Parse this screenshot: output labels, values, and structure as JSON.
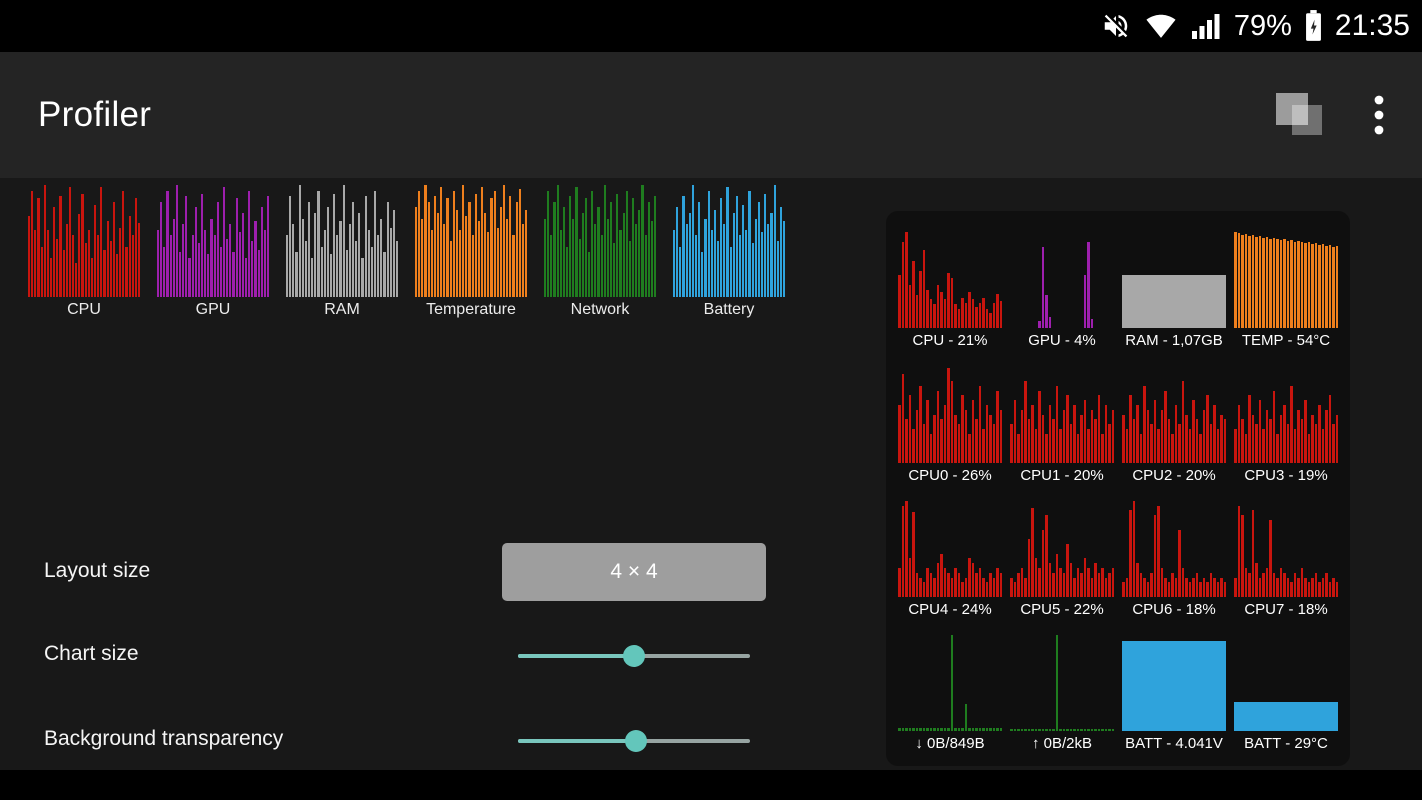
{
  "status_bar": {
    "battery_percent": "79%",
    "time": "21:35",
    "icons": [
      "volume-muted",
      "wifi",
      "cell-signal",
      "battery-charging"
    ]
  },
  "app_bar": {
    "title": "Profiler",
    "icons": [
      "overlay-windows",
      "more-vert"
    ]
  },
  "colors": {
    "accent_teal": "#63c6bb",
    "button_gray": "#9e9e9e",
    "cpu_red": "#c9150e",
    "gpu_purple": "#9e1fae",
    "ram_gray": "#a8a8a8",
    "temp_orange": "#ee7f1d",
    "network_green": "#1f7d1f",
    "battery_blue": "#2fa3dc"
  },
  "chart_types": [
    {
      "label": "CPU",
      "color": "#c9150e",
      "bars": [
        72,
        95,
        60,
        88,
        45,
        100,
        60,
        35,
        80,
        52,
        90,
        42,
        65,
        98,
        55,
        30,
        74,
        92,
        48,
        60,
        35,
        82,
        55,
        98,
        42,
        68,
        50,
        85,
        38,
        62,
        95,
        45,
        72,
        55,
        88,
        66
      ]
    },
    {
      "label": "GPU",
      "color": "#9e1fae",
      "bars": [
        60,
        85,
        45,
        95,
        55,
        70,
        100,
        40,
        65,
        90,
        35,
        55,
        80,
        48,
        92,
        60,
        38,
        70,
        55,
        85,
        45,
        98,
        52,
        65,
        40,
        88,
        58,
        75,
        35,
        95,
        50,
        68,
        42,
        80,
        60,
        90
      ]
    },
    {
      "label": "RAM",
      "color": "#a8a8a8",
      "bars": [
        55,
        90,
        65,
        40,
        100,
        70,
        50,
        85,
        35,
        75,
        95,
        45,
        60,
        80,
        38,
        92,
        55,
        68,
        100,
        42,
        65,
        85,
        50,
        75,
        35,
        90,
        60,
        45,
        95,
        55,
        70,
        40,
        85,
        62,
        78,
        50
      ]
    },
    {
      "label": "Temperature",
      "color": "#ee7f1d",
      "bars": [
        80,
        95,
        70,
        100,
        85,
        60,
        90,
        75,
        98,
        65,
        88,
        50,
        95,
        78,
        60,
        100,
        72,
        85,
        55,
        92,
        68,
        98,
        75,
        58,
        88,
        95,
        62,
        80,
        100,
        70,
        90,
        55,
        85,
        96,
        65,
        78
      ]
    },
    {
      "label": "Network",
      "color": "#1f7d1f",
      "bars": [
        70,
        95,
        55,
        85,
        100,
        60,
        80,
        45,
        90,
        70,
        98,
        52,
        75,
        88,
        40,
        95,
        65,
        80,
        55,
        100,
        70,
        85,
        48,
        92,
        60,
        75,
        95,
        50,
        88,
        65,
        78,
        100,
        55,
        85,
        68,
        90
      ]
    },
    {
      "label": "Battery",
      "color": "#2fa3dc",
      "bars": [
        60,
        80,
        45,
        90,
        65,
        75,
        100,
        55,
        85,
        40,
        70,
        95,
        60,
        78,
        50,
        88,
        65,
        98,
        45,
        75,
        90,
        55,
        82,
        60,
        95,
        48,
        70,
        85,
        58,
        92,
        65,
        75,
        100,
        50,
        80,
        68
      ]
    }
  ],
  "settings": {
    "layout_size_label": "Layout size",
    "layout_size_value": "4 × 4",
    "chart_size_label": "Chart size",
    "chart_size_percent": 50,
    "background_transparency_label": "Background transparency",
    "background_transparency_percent": 51
  },
  "preview": {
    "cells": [
      {
        "label": "CPU - 21%",
        "type": "bars",
        "color": "#c9150e",
        "bars": [
          55,
          90,
          100,
          45,
          70,
          35,
          60,
          82,
          40,
          30,
          25,
          45,
          38,
          30,
          58,
          52,
          25,
          20,
          32,
          26,
          38,
          30,
          22,
          26,
          32,
          20,
          16,
          26,
          36,
          28
        ]
      },
      {
        "label": "GPU - 4%",
        "type": "bars",
        "color": "#9e1fae",
        "bars": [
          0,
          0,
          0,
          0,
          0,
          0,
          0,
          0,
          8,
          85,
          35,
          12,
          0,
          0,
          0,
          0,
          0,
          0,
          0,
          0,
          0,
          55,
          90,
          10,
          0,
          0,
          0,
          0,
          0,
          0
        ]
      },
      {
        "label": "RAM - 1,07GB",
        "type": "fill",
        "color": "#a8a8a8",
        "level": 55
      },
      {
        "label": "TEMP - 54°C",
        "type": "bars",
        "color": "#ee7f1d",
        "bars": [
          100,
          99,
          97,
          98,
          96,
          97,
          95,
          96,
          94,
          95,
          93,
          94,
          93,
          92,
          93,
          91,
          92,
          90,
          91,
          90,
          89,
          90,
          88,
          89,
          87,
          88,
          86,
          87,
          85,
          86
        ]
      },
      {
        "label": "CPU0 - 26%",
        "type": "bars",
        "color": "#c9150e",
        "bars": [
          60,
          92,
          45,
          70,
          35,
          55,
          80,
          40,
          65,
          30,
          50,
          75,
          45,
          60,
          98,
          85,
          50,
          40,
          70,
          55,
          30,
          65,
          45,
          80,
          35,
          60,
          50,
          40,
          75,
          55
        ]
      },
      {
        "label": "CPU1 - 20%",
        "type": "bars",
        "color": "#c9150e",
        "bars": [
          40,
          65,
          30,
          55,
          85,
          45,
          60,
          35,
          75,
          50,
          30,
          60,
          45,
          80,
          35,
          55,
          70,
          40,
          60,
          30,
          50,
          65,
          35,
          55,
          45,
          70,
          30,
          60,
          40,
          55
        ]
      },
      {
        "label": "CPU2 - 20%",
        "type": "bars",
        "color": "#c9150e",
        "bars": [
          50,
          35,
          70,
          45,
          60,
          30,
          80,
          55,
          40,
          65,
          35,
          55,
          75,
          45,
          30,
          60,
          40,
          85,
          50,
          35,
          65,
          45,
          30,
          55,
          70,
          40,
          60,
          35,
          50,
          45
        ]
      },
      {
        "label": "CPU3 - 19%",
        "type": "bars",
        "color": "#c9150e",
        "bars": [
          35,
          60,
          45,
          30,
          70,
          50,
          40,
          65,
          35,
          55,
          45,
          75,
          30,
          50,
          60,
          40,
          80,
          35,
          55,
          45,
          65,
          30,
          50,
          40,
          60,
          35,
          55,
          70,
          40,
          50
        ]
      },
      {
        "label": "CPU4 - 24%",
        "type": "bars",
        "color": "#c9150e",
        "bars": [
          30,
          95,
          100,
          40,
          88,
          25,
          20,
          15,
          30,
          25,
          20,
          35,
          45,
          30,
          25,
          20,
          30,
          25,
          15,
          20,
          40,
          35,
          25,
          30,
          20,
          15,
          25,
          20,
          30,
          25
        ]
      },
      {
        "label": "CPU5 - 22%",
        "type": "bars",
        "color": "#c9150e",
        "bars": [
          20,
          15,
          25,
          30,
          20,
          60,
          92,
          40,
          30,
          70,
          85,
          35,
          25,
          45,
          30,
          25,
          55,
          35,
          20,
          30,
          25,
          40,
          30,
          20,
          35,
          25,
          30,
          20,
          25,
          30
        ]
      },
      {
        "label": "CPU6 - 18%",
        "type": "bars",
        "color": "#c9150e",
        "bars": [
          15,
          20,
          90,
          100,
          35,
          25,
          20,
          15,
          25,
          85,
          95,
          30,
          20,
          15,
          25,
          20,
          70,
          30,
          20,
          15,
          20,
          25,
          15,
          20,
          15,
          25,
          20,
          15,
          20,
          15
        ]
      },
      {
        "label": "CPU7 - 18%",
        "type": "bars",
        "color": "#c9150e",
        "bars": [
          20,
          95,
          85,
          30,
          25,
          90,
          35,
          20,
          25,
          30,
          80,
          25,
          20,
          30,
          25,
          20,
          15,
          25,
          20,
          30,
          20,
          15,
          20,
          25,
          15,
          20,
          25,
          15,
          20,
          15
        ]
      },
      {
        "label": "↓ 0B/849B",
        "type": "bars",
        "color": "#1f7d1f",
        "bars": [
          3,
          3,
          3,
          3,
          3,
          3,
          3,
          3,
          3,
          3,
          3,
          3,
          3,
          3,
          3,
          100,
          3,
          3,
          3,
          28,
          3,
          3,
          3,
          3,
          3,
          3,
          3,
          3,
          3,
          3
        ]
      },
      {
        "label": "↑ 0B/2kB",
        "type": "bars",
        "color": "#1f7d1f",
        "bars": [
          2,
          2,
          2,
          2,
          2,
          2,
          2,
          2,
          2,
          2,
          2,
          2,
          2,
          100,
          2,
          2,
          2,
          2,
          2,
          2,
          2,
          2,
          2,
          2,
          2,
          2,
          2,
          2,
          2,
          2
        ]
      },
      {
        "label": "BATT - 4.041V",
        "type": "fill",
        "color": "#2fa3dc",
        "level": 94
      },
      {
        "label": "BATT - 29°C",
        "type": "fill",
        "color": "#2fa3dc",
        "level": 30
      }
    ]
  }
}
